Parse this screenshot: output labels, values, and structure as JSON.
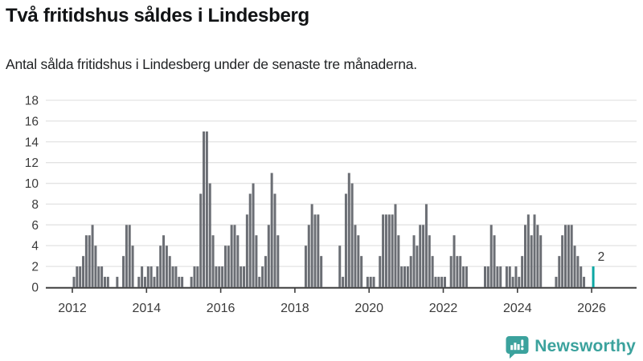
{
  "header": {
    "title": "Två fritidshus såldes i Lindesberg",
    "subtitle": "Antal sålda fritidshus i Lindesberg under de senaste tre månaderna."
  },
  "chart_data": {
    "type": "bar",
    "title": "Två fritidshus såldes i Lindesberg",
    "subtitle": "Antal sålda fritidshus i Lindesberg under de senaste tre månaderna.",
    "x_start": "2012-01",
    "x_end": "2026-01",
    "ylim": [
      0,
      18
    ],
    "y_ticks": [
      0,
      2,
      4,
      6,
      8,
      10,
      12,
      14,
      16,
      18
    ],
    "x_tick_labels": [
      "2012",
      "2014",
      "2016",
      "2018",
      "2020",
      "2022",
      "2024",
      "2026"
    ],
    "grid": "horizontal",
    "legend": "none",
    "bar_color": "#6b6e74",
    "highlight_color": "#0ca7a3",
    "annotation": {
      "text": "2",
      "applies_to": "last_bar"
    },
    "series": [
      {
        "year": 2012,
        "monthly_values": [
          1,
          2,
          2,
          3,
          5,
          5,
          6,
          4,
          2,
          2,
          1,
          1
        ]
      },
      {
        "year": 2013,
        "monthly_values": [
          0,
          0,
          1,
          0,
          3,
          6,
          6,
          4,
          0,
          1,
          2,
          1
        ]
      },
      {
        "year": 2014,
        "monthly_values": [
          2,
          2,
          1,
          2,
          4,
          5,
          4,
          3,
          2,
          2,
          1,
          1
        ]
      },
      {
        "year": 2015,
        "monthly_values": [
          0,
          0,
          1,
          2,
          2,
          9,
          15,
          15,
          10,
          5,
          2,
          2
        ]
      },
      {
        "year": 2016,
        "monthly_values": [
          2,
          4,
          4,
          6,
          6,
          5,
          2,
          2,
          7,
          9,
          10,
          5
        ]
      },
      {
        "year": 2017,
        "monthly_values": [
          1,
          2,
          3,
          6,
          11,
          9,
          5,
          0,
          0,
          0,
          0,
          0
        ]
      },
      {
        "year": 2018,
        "monthly_values": [
          0,
          0,
          0,
          4,
          6,
          8,
          7,
          7,
          3,
          0,
          0,
          0
        ]
      },
      {
        "year": 2019,
        "monthly_values": [
          0,
          0,
          4,
          1,
          9,
          11,
          10,
          6,
          5,
          3,
          0,
          1
        ]
      },
      {
        "year": 2020,
        "monthly_values": [
          1,
          1,
          0,
          3,
          7,
          7,
          7,
          7,
          8,
          5,
          2,
          2
        ]
      },
      {
        "year": 2021,
        "monthly_values": [
          2,
          3,
          5,
          4,
          6,
          6,
          8,
          5,
          3,
          1,
          1,
          1
        ]
      },
      {
        "year": 2022,
        "monthly_values": [
          1,
          0,
          3,
          5,
          3,
          3,
          2,
          2,
          0,
          0,
          0,
          0
        ]
      },
      {
        "year": 2023,
        "monthly_values": [
          0,
          2,
          2,
          6,
          5,
          2,
          2,
          0,
          2,
          2,
          1,
          2
        ]
      },
      {
        "year": 2024,
        "monthly_values": [
          1,
          3,
          6,
          7,
          5,
          7,
          6,
          5,
          0,
          0,
          0,
          0
        ]
      },
      {
        "year": 2025,
        "monthly_values": [
          1,
          3,
          5,
          6,
          6,
          6,
          4,
          3,
          2,
          1,
          0,
          0
        ]
      },
      {
        "year": 2026,
        "monthly_values": [
          2
        ]
      }
    ],
    "highlight_last_bar": true,
    "colors": {
      "grid": "#e3e3e3",
      "axis_line": "#3f3f3f",
      "tick_label": "#3b3b3b",
      "annotation_label": "#333333"
    }
  },
  "footer": {
    "brand": "Newsworthy"
  }
}
